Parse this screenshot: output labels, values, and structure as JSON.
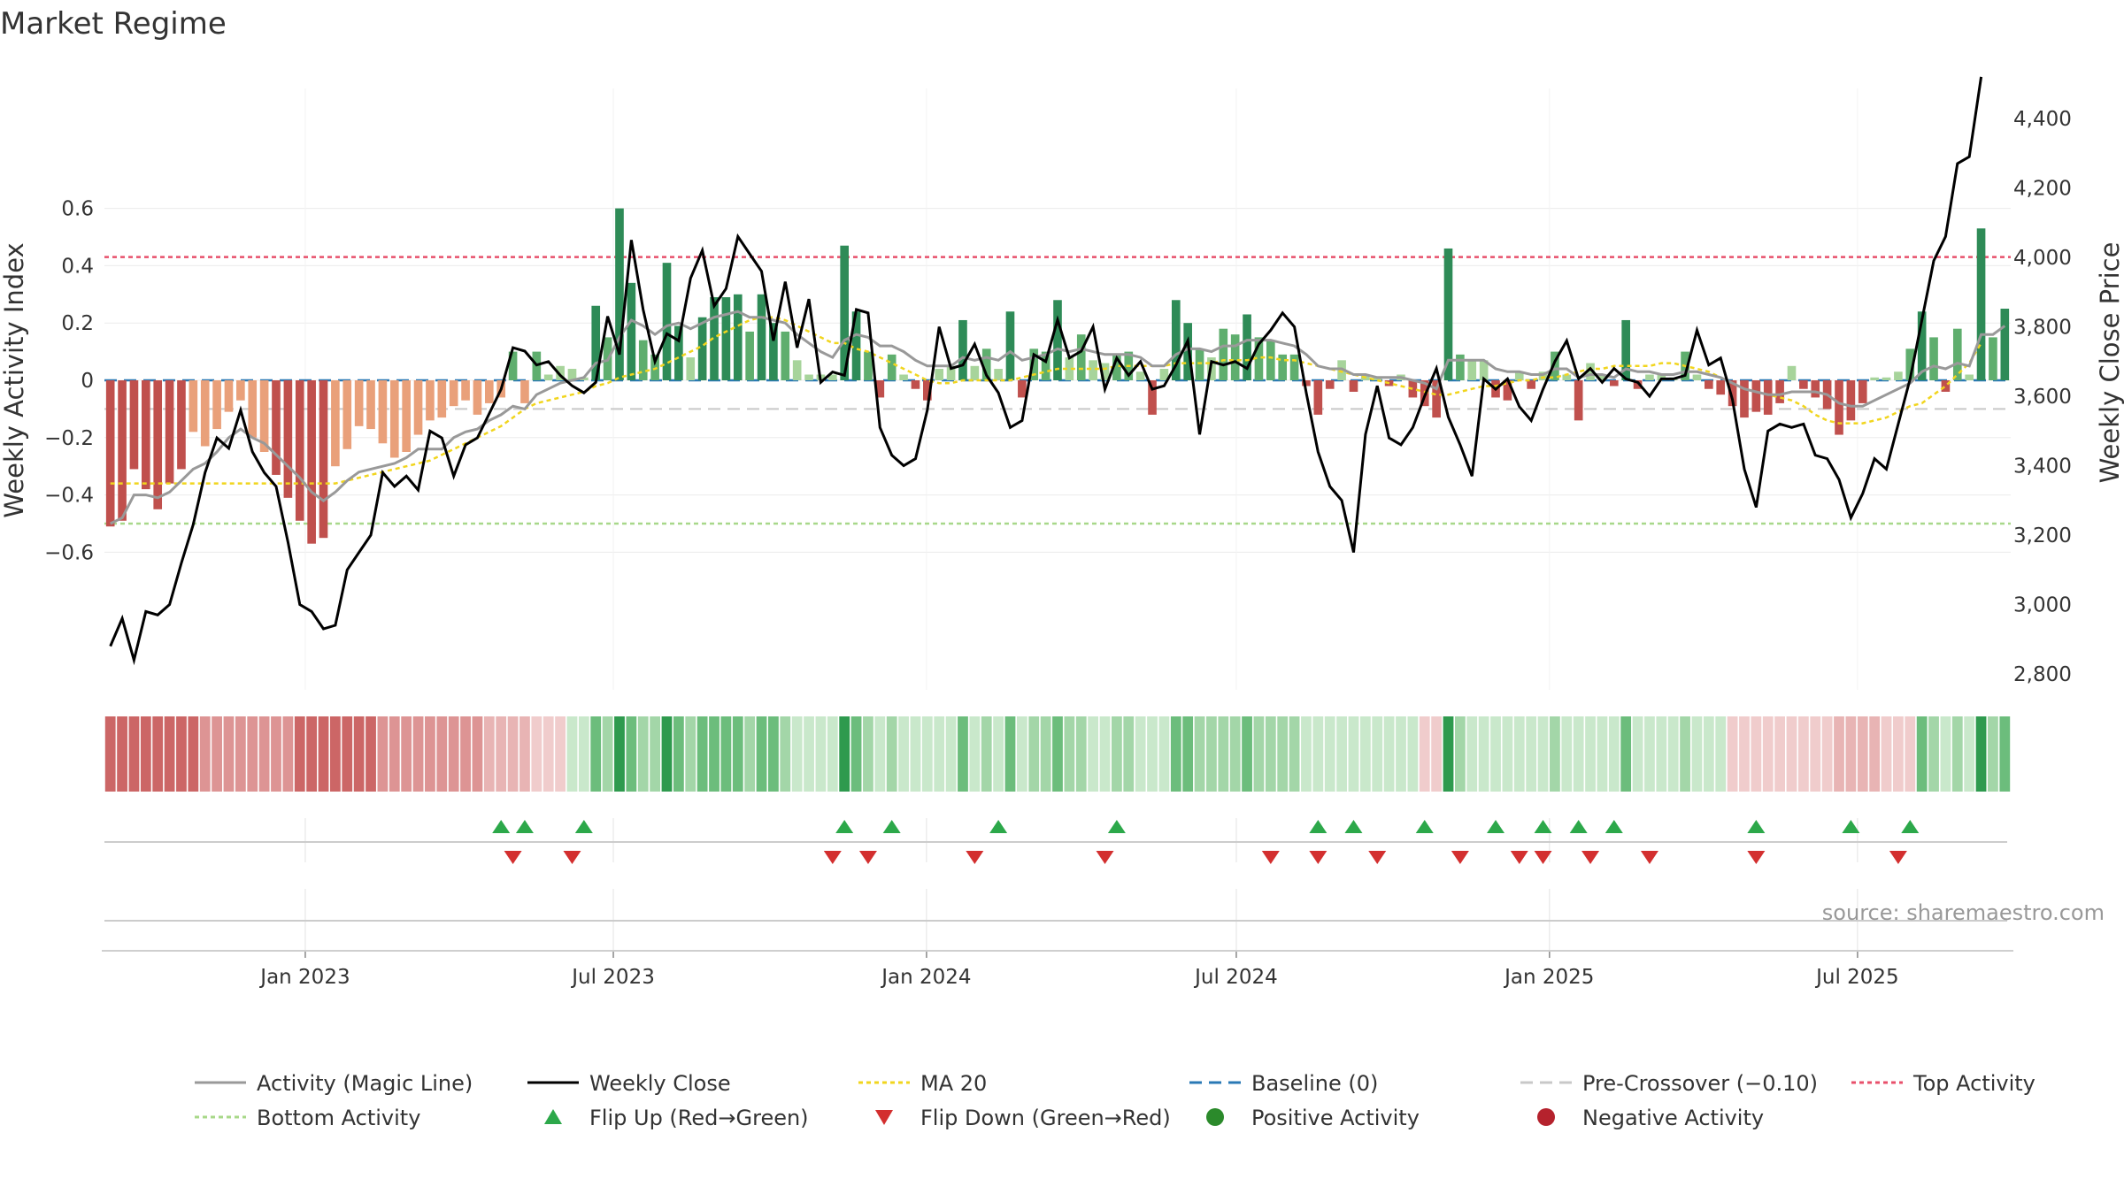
{
  "chart_data": {
    "type": "bar",
    "title": "Market Regime",
    "ylabel_left": "Weekly Activity Index",
    "ylabel_right": "Weekly Close Price",
    "source": "source: sharemaestro.com",
    "ylim_left": [
      -0.65,
      0.62
    ],
    "ylim_right": [
      2760,
      4480
    ],
    "yticks_left": [
      "0.6",
      "0.4",
      "0.2",
      "0",
      "−0.2",
      "−0.4",
      "−0.6"
    ],
    "yticks_left_values": [
      0.6,
      0.4,
      0.2,
      0,
      -0.2,
      -0.4,
      -0.6
    ],
    "yticks_right": [
      "4,400",
      "4,200",
      "4,000",
      "3,800",
      "3,600",
      "3,400",
      "3,200",
      "3,000",
      "2,800"
    ],
    "yticks_right_values": [
      4400,
      4200,
      4000,
      3800,
      3600,
      3400,
      3200,
      3000,
      2800
    ],
    "x_range": [
      "2022-09-05",
      "2025-09-29"
    ],
    "xticks": [
      {
        "date": "2023-01-01",
        "label": "Jan 2023"
      },
      {
        "date": "2023-07-01",
        "label": "Jul 2023"
      },
      {
        "date": "2024-01-01",
        "label": "Jan 2024"
      },
      {
        "date": "2024-07-01",
        "label": "Jul 2024"
      },
      {
        "date": "2025-01-01",
        "label": "Jan 2025"
      },
      {
        "date": "2025-07-01",
        "label": "Jul 2025"
      }
    ],
    "reference_lines": {
      "top_activity": 0.43,
      "bottom_activity": -0.5,
      "pre_crossover": -0.1,
      "baseline": 0
    },
    "activity": [
      -0.51,
      -0.49,
      -0.31,
      -0.38,
      -0.45,
      -0.36,
      -0.31,
      -0.18,
      -0.23,
      -0.17,
      -0.11,
      -0.07,
      -0.2,
      -0.25,
      -0.33,
      -0.41,
      -0.49,
      -0.57,
      -0.55,
      -0.3,
      -0.24,
      -0.16,
      -0.17,
      -0.22,
      -0.27,
      -0.25,
      -0.19,
      -0.14,
      -0.13,
      -0.09,
      -0.07,
      -0.12,
      -0.08,
      -0.06,
      0.1,
      -0.08,
      0.1,
      0.02,
      0.05,
      0.04,
      0.01,
      0.26,
      0.15,
      0.6,
      0.34,
      0.14,
      0.09,
      0.41,
      0.19,
      0.08,
      0.22,
      0.29,
      0.29,
      0.3,
      0.17,
      0.3,
      0.2,
      0.17,
      0.07,
      0.02,
      0.02,
      0.02,
      0.47,
      0.24,
      0.1,
      -0.06,
      0.09,
      0.02,
      -0.03,
      -0.07,
      0.04,
      0.05,
      0.21,
      0.05,
      0.11,
      0.04,
      0.24,
      -0.06,
      0.11,
      0.1,
      0.28,
      0.08,
      0.16,
      0.07,
      0.06,
      0.09,
      0.1,
      0.03,
      -0.12,
      0.04,
      0.28,
      0.2,
      0.11,
      0.08,
      0.18,
      0.16,
      0.23,
      0.15,
      0.14,
      0.09,
      0.09,
      -0.02,
      -0.12,
      -0.03,
      0.07,
      -0.04,
      0.02,
      0.01,
      -0.02,
      0.02,
      -0.06,
      -0.09,
      -0.13,
      0.46,
      0.09,
      0.07,
      0.07,
      -0.06,
      -0.07,
      0.03,
      -0.03,
      0.03,
      0.1,
      0.02,
      -0.14,
      0.06,
      0.02,
      -0.02,
      0.21,
      -0.03,
      0.02,
      0.02,
      0.01,
      0.1,
      0.02,
      -0.03,
      -0.05,
      -0.09,
      -0.13,
      -0.11,
      -0.12,
      -0.08,
      0.05,
      -0.03,
      -0.06,
      -0.1,
      -0.19,
      -0.14,
      -0.08,
      0.01,
      0.01,
      0.03,
      0.11,
      0.24,
      0.15,
      -0.04,
      0.18,
      0.02,
      0.53,
      0.15,
      0.25
    ],
    "magic_line": [
      -0.5,
      -0.48,
      -0.4,
      -0.4,
      -0.41,
      -0.39,
      -0.35,
      -0.31,
      -0.29,
      -0.25,
      -0.2,
      -0.17,
      -0.2,
      -0.22,
      -0.26,
      -0.3,
      -0.34,
      -0.39,
      -0.42,
      -0.39,
      -0.35,
      -0.32,
      -0.31,
      -0.3,
      -0.29,
      -0.27,
      -0.24,
      -0.24,
      -0.24,
      -0.2,
      -0.18,
      -0.17,
      -0.14,
      -0.12,
      -0.09,
      -0.1,
      -0.05,
      -0.03,
      -0.01,
      0.0,
      0.01,
      0.06,
      0.07,
      0.15,
      0.21,
      0.19,
      0.16,
      0.19,
      0.2,
      0.18,
      0.2,
      0.22,
      0.23,
      0.24,
      0.22,
      0.22,
      0.21,
      0.2,
      0.16,
      0.13,
      0.1,
      0.08,
      0.14,
      0.16,
      0.15,
      0.12,
      0.12,
      0.1,
      0.07,
      0.05,
      0.05,
      0.05,
      0.08,
      0.07,
      0.08,
      0.07,
      0.1,
      0.07,
      0.08,
      0.09,
      0.11,
      0.1,
      0.11,
      0.1,
      0.09,
      0.09,
      0.09,
      0.08,
      0.05,
      0.05,
      0.09,
      0.11,
      0.11,
      0.1,
      0.12,
      0.12,
      0.14,
      0.14,
      0.14,
      0.13,
      0.12,
      0.09,
      0.05,
      0.04,
      0.04,
      0.02,
      0.02,
      0.01,
      0.01,
      0.01,
      0.0,
      -0.01,
      -0.03,
      0.07,
      0.07,
      0.07,
      0.07,
      0.04,
      0.03,
      0.03,
      0.02,
      0.02,
      0.04,
      0.04,
      0.01,
      0.02,
      0.02,
      0.01,
      0.04,
      0.03,
      0.03,
      0.02,
      0.02,
      0.03,
      0.03,
      0.02,
      0.01,
      -0.01,
      -0.03,
      -0.04,
      -0.05,
      -0.05,
      -0.04,
      -0.04,
      -0.04,
      -0.05,
      -0.08,
      -0.09,
      -0.09,
      -0.07,
      -0.05,
      -0.03,
      -0.01,
      0.03,
      0.05,
      0.04,
      0.06,
      0.05,
      0.16,
      0.16,
      0.19
    ],
    "ma20": [
      -0.36,
      -0.36,
      -0.36,
      -0.36,
      -0.36,
      -0.36,
      -0.36,
      -0.36,
      -0.36,
      -0.36,
      -0.36,
      -0.36,
      -0.36,
      -0.36,
      -0.36,
      -0.36,
      -0.36,
      -0.36,
      -0.36,
      -0.36,
      -0.35,
      -0.34,
      -0.33,
      -0.32,
      -0.31,
      -0.3,
      -0.29,
      -0.28,
      -0.26,
      -0.24,
      -0.22,
      -0.2,
      -0.18,
      -0.16,
      -0.13,
      -0.1,
      -0.08,
      -0.07,
      -0.06,
      -0.05,
      -0.04,
      -0.02,
      -0.01,
      0.01,
      0.02,
      0.03,
      0.04,
      0.06,
      0.08,
      0.1,
      0.12,
      0.15,
      0.17,
      0.19,
      0.21,
      0.22,
      0.22,
      0.21,
      0.19,
      0.17,
      0.15,
      0.13,
      0.13,
      0.11,
      0.1,
      0.08,
      0.06,
      0.04,
      0.02,
      0.0,
      -0.01,
      -0.01,
      0.0,
      0.0,
      0.0,
      0.0,
      0.0,
      0.01,
      0.02,
      0.03,
      0.04,
      0.04,
      0.04,
      0.04,
      0.04,
      0.05,
      0.05,
      0.05,
      0.05,
      0.05,
      0.06,
      0.06,
      0.06,
      0.06,
      0.07,
      0.07,
      0.07,
      0.08,
      0.08,
      0.07,
      0.07,
      0.06,
      0.05,
      0.04,
      0.03,
      0.02,
      0.01,
      0.0,
      -0.01,
      -0.02,
      -0.03,
      -0.04,
      -0.05,
      -0.05,
      -0.04,
      -0.03,
      -0.02,
      -0.02,
      -0.01,
      0.0,
      0.0,
      0.01,
      0.01,
      0.02,
      0.03,
      0.04,
      0.04,
      0.05,
      0.05,
      0.05,
      0.05,
      0.06,
      0.06,
      0.05,
      0.04,
      0.03,
      0.01,
      -0.01,
      -0.03,
      -0.04,
      -0.05,
      -0.06,
      -0.07,
      -0.09,
      -0.12,
      -0.14,
      -0.15,
      -0.15,
      -0.15,
      -0.14,
      -0.13,
      -0.11,
      -0.09,
      -0.08,
      -0.05,
      -0.02,
      0.02,
      0.06,
      0.13
    ],
    "weekly_close": [
      2880,
      2960,
      2840,
      2980,
      2970,
      3000,
      3120,
      3230,
      3380,
      3480,
      3450,
      3560,
      3440,
      3380,
      3340,
      3180,
      3000,
      2980,
      2930,
      2940,
      3100,
      3150,
      3200,
      3380,
      3340,
      3370,
      3330,
      3500,
      3480,
      3370,
      3460,
      3480,
      3550,
      3620,
      3740,
      3730,
      3690,
      3700,
      3660,
      3630,
      3610,
      3640,
      3830,
      3720,
      4050,
      3850,
      3700,
      3780,
      3760,
      3940,
      4020,
      3860,
      3910,
      4060,
      4010,
      3960,
      3760,
      3930,
      3740,
      3880,
      3640,
      3670,
      3660,
      3850,
      3840,
      3510,
      3430,
      3400,
      3420,
      3560,
      3800,
      3680,
      3690,
      3750,
      3660,
      3610,
      3510,
      3530,
      3720,
      3700,
      3820,
      3710,
      3730,
      3800,
      3620,
      3710,
      3660,
      3700,
      3620,
      3630,
      3690,
      3760,
      3490,
      3700,
      3690,
      3700,
      3680,
      3750,
      3790,
      3840,
      3800,
      3610,
      3440,
      3340,
      3300,
      3150,
      3490,
      3630,
      3480,
      3460,
      3510,
      3600,
      3680,
      3540,
      3460,
      3370,
      3650,
      3620,
      3650,
      3570,
      3530,
      3620,
      3700,
      3760,
      3650,
      3680,
      3640,
      3680,
      3650,
      3640,
      3600,
      3650,
      3650,
      3660,
      3790,
      3690,
      3710,
      3590,
      3390,
      3280,
      3500,
      3520,
      3510,
      3520,
      3430,
      3420,
      3360,
      3250,
      3320,
      3420,
      3390,
      3520,
      3650,
      3820,
      3990,
      4060,
      4270,
      4290,
      4520
    ]
  },
  "flip_up_weeks": [
    33,
    35,
    40,
    62,
    66,
    75,
    85,
    102,
    105,
    111,
    117,
    121,
    124,
    127,
    139,
    147,
    152
  ],
  "flip_down_weeks": [
    34,
    39,
    61,
    64,
    73,
    84,
    98,
    102,
    107,
    114,
    119,
    121,
    125,
    130,
    139,
    151
  ],
  "legend": [
    {
      "label": "Activity (Magic Line)",
      "kind": "line",
      "color": "#999999",
      "dash": ""
    },
    {
      "label": "Weekly Close",
      "kind": "line",
      "color": "#000000",
      "dash": ""
    },
    {
      "label": "MA 20",
      "kind": "line",
      "color": "#f1d51e",
      "dash": "5,4"
    },
    {
      "label": "Baseline (0)",
      "kind": "line",
      "color": "#2a79b5",
      "dash": "14,8"
    },
    {
      "label": "Pre-Crossover (−0.10)",
      "kind": "line",
      "color": "#c8c8c8",
      "dash": "14,8"
    },
    {
      "label": "Top Activity",
      "kind": "line",
      "color": "#e8506b",
      "dash": "5,4"
    },
    {
      "label": "Bottom Activity",
      "kind": "line",
      "color": "#a8d88a",
      "dash": "5,4"
    },
    {
      "label": "Flip Up (Red→Green)",
      "kind": "tri-up",
      "color": "#2ca84a",
      "dash": ""
    },
    {
      "label": "Flip Down (Green→Red)",
      "kind": "tri-down",
      "color": "#d32f2f",
      "dash": ""
    },
    {
      "label": "Positive Activity",
      "kind": "dot",
      "color": "#2b8a2b",
      "dash": ""
    },
    {
      "label": "Negative Activity",
      "kind": "dot",
      "color": "#b5222d",
      "dash": ""
    }
  ],
  "colors": {
    "pos_strong": "#2e8b57",
    "pos_mid": "#5fae6e",
    "pos_light": "#a7d49b",
    "neg_strong": "#c0504d",
    "neg_mid": "#d9736d",
    "neg_light": "#e9a07a",
    "magic_line": "#999999",
    "close_line": "#000000",
    "ma20": "#f1d51e",
    "top_activity": "#e8506b",
    "bottom_activity": "#a8d88a",
    "pre_crossover": "#c8c8c8",
    "baseline": "#2a79b5",
    "flip_up": "#2ca84a",
    "flip_down": "#d32f2f"
  }
}
